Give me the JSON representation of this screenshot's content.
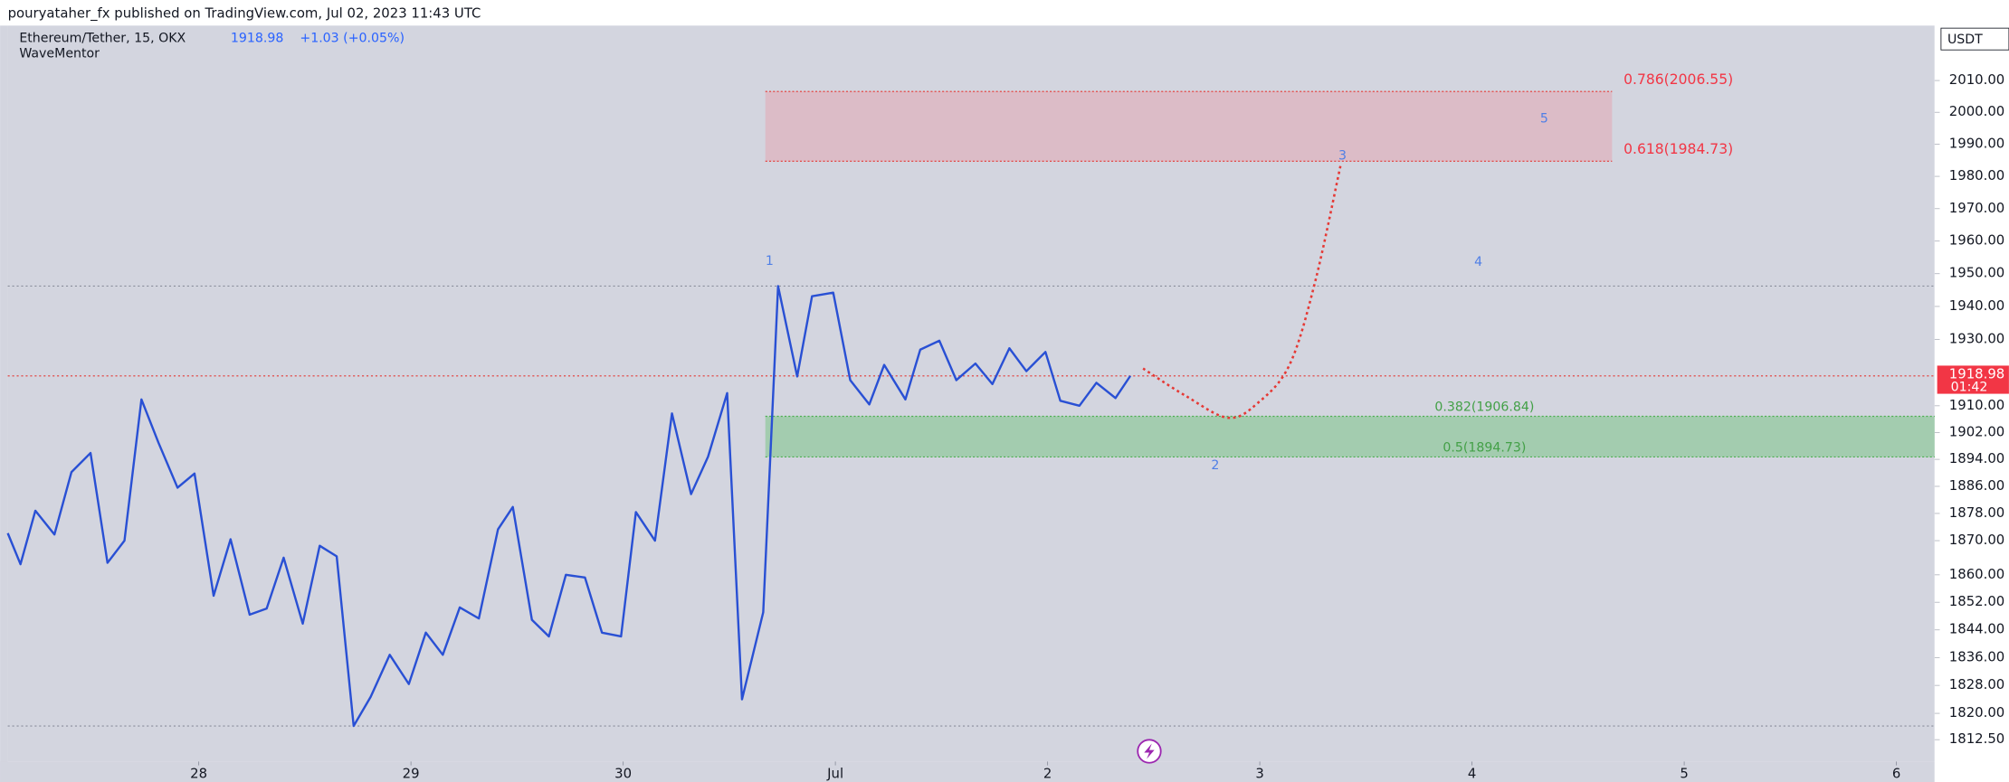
{
  "header": {
    "title": "pouryataher_fx published on TradingView.com, Jul 02, 2023 11:43 UTC"
  },
  "chart_data": {
    "type": "line",
    "log": true,
    "indicator": "WaveMentor",
    "change": "+1.03 (+0.05%)",
    "currency": "USDT",
    "countdown": "01:42",
    "x": [
      27.1,
      27.16,
      27.23,
      27.32,
      27.4,
      27.49,
      27.57,
      27.65,
      27.73,
      27.81,
      27.9,
      27.98,
      28.07,
      28.15,
      28.24,
      28.32,
      28.4,
      28.49,
      28.57,
      28.65,
      28.73,
      28.81,
      28.9,
      28.99,
      29.07,
      29.15,
      29.23,
      29.32,
      29.41,
      29.48,
      29.57,
      29.65,
      29.73,
      29.82,
      29.9,
      29.99,
      30.06,
      30.15,
      30.23,
      30.32,
      30.4,
      30.49,
      30.56,
      30.66,
      30.73,
      30.82,
      30.89,
      30.99,
      31.07,
      31.16,
      31.23,
      31.33,
      31.4,
      31.49,
      31.57,
      31.66,
      31.74,
      31.82,
      31.9,
      31.99,
      32.06,
      32.15,
      32.23,
      32.32,
      32.39
    ],
    "series": [
      {
        "name": "Ethereum/Tether, 15, OKX",
        "color": "#2950d4",
        "values": [
          1872.2,
          1863.1,
          1878.8,
          1871.8,
          1890.2,
          1895.9,
          1863.5,
          1870,
          1911.9,
          1899.0,
          1885.6,
          1889.8,
          1853.9,
          1870.4,
          1848.4,
          1850.2,
          1865,
          1845.8,
          1868.5,
          1865.4,
          1816.4,
          1824.7,
          1836.8,
          1828.4,
          1843.2,
          1836.8,
          1850.5,
          1847.3,
          1873.3,
          1879.9,
          1846.9,
          1842.1,
          1860,
          1859.2,
          1843.2,
          1842.1,
          1878.4,
          1870,
          1907.7,
          1883.7,
          1894.8,
          1913.8,
          1824,
          1849.1,
          1946.2,
          1918.8,
          1943.1,
          1944.2,
          1917.7,
          1910.4,
          1922.3,
          1911.9,
          1926.9,
          1929.6,
          1917.7,
          1922.7,
          1916.5,
          1927.3,
          1920.4,
          1926.2,
          1911.5,
          1910,
          1916.9,
          1912.3,
          1918.98
        ]
      }
    ],
    "projection": {
      "color": "#e53935",
      "x": [
        32.45,
        32.65,
        32.85,
        32.99,
        33.14,
        33.26,
        33.38
      ],
      "values": [
        1921.2,
        1913,
        1906.4,
        1910.8,
        1922.3,
        1947.3,
        1983.2
      ]
    },
    "zones": [
      {
        "top": 2006.55,
        "bottom": 1984.73,
        "x0": 30.67,
        "x1": 34.66,
        "color": "#e3a7b2",
        "line_color": "#e53935",
        "text_color": "#f23645",
        "labels": [
          "0.786(2006.55)",
          "0.618(1984.73)"
        ]
      },
      {
        "top": 1906.84,
        "bottom": 1894.73,
        "x0": 30.67,
        "color": "#7cc487",
        "line_color": "#4caf50",
        "text_color": "#43a047",
        "labels": [
          "0.382(1906.84)",
          "0.5(1894.73)"
        ]
      }
    ],
    "annotations": [
      {
        "text": "1",
        "x": 30.69,
        "y": 1953.8
      },
      {
        "text": "2",
        "x": 32.79,
        "y": 1892.1
      },
      {
        "text": "3",
        "x": 33.39,
        "y": 1986.4
      },
      {
        "text": "4",
        "x": 34.03,
        "y": 1953.5
      },
      {
        "text": "5",
        "x": 34.34,
        "y": 1997.9
      }
    ],
    "xlim": [
      27.1,
      36.18
    ],
    "xticks": [
      {
        "value": 28,
        "label": "28"
      },
      {
        "value": 29,
        "label": "29"
      },
      {
        "value": 30,
        "label": "30"
      },
      {
        "value": 31,
        "label": "Jul"
      },
      {
        "value": 32,
        "label": "2"
      },
      {
        "value": 33,
        "label": "3"
      },
      {
        "value": 34,
        "label": "4"
      },
      {
        "value": 35,
        "label": "5"
      },
      {
        "value": 36,
        "label": "6"
      }
    ],
    "ylim": [
      1806.3,
      2027.4
    ],
    "yticks": [
      {
        "value": 2010,
        "label": "2010.00"
      },
      {
        "value": 2000,
        "label": "2000.00"
      },
      {
        "value": 1990,
        "label": "1990.00"
      },
      {
        "value": 1980,
        "label": "1980.00"
      },
      {
        "value": 1970,
        "label": "1970.00"
      },
      {
        "value": 1960,
        "label": "1960.00"
      },
      {
        "value": 1950,
        "label": "1950.00"
      },
      {
        "value": 1940,
        "label": "1940.00"
      },
      {
        "value": 1930,
        "label": "1930.00"
      },
      {
        "value": 1910,
        "label": "1910.00"
      },
      {
        "value": 1902,
        "label": "1902.00"
      },
      {
        "value": 1894,
        "label": "1894.00"
      },
      {
        "value": 1886,
        "label": "1886.00"
      },
      {
        "value": 1878,
        "label": "1878.00"
      },
      {
        "value": 1870,
        "label": "1870.00"
      },
      {
        "value": 1860,
        "label": "1860.00"
      },
      {
        "value": 1852,
        "label": "1852.00"
      },
      {
        "value": 1844,
        "label": "1844.00"
      },
      {
        "value": 1836,
        "label": "1836.00"
      },
      {
        "value": 1828,
        "label": "1828.00"
      },
      {
        "value": 1820,
        "label": "1820.00"
      },
      {
        "value": 1812.5,
        "label": "1812.50"
      }
    ],
    "grid": false
  }
}
